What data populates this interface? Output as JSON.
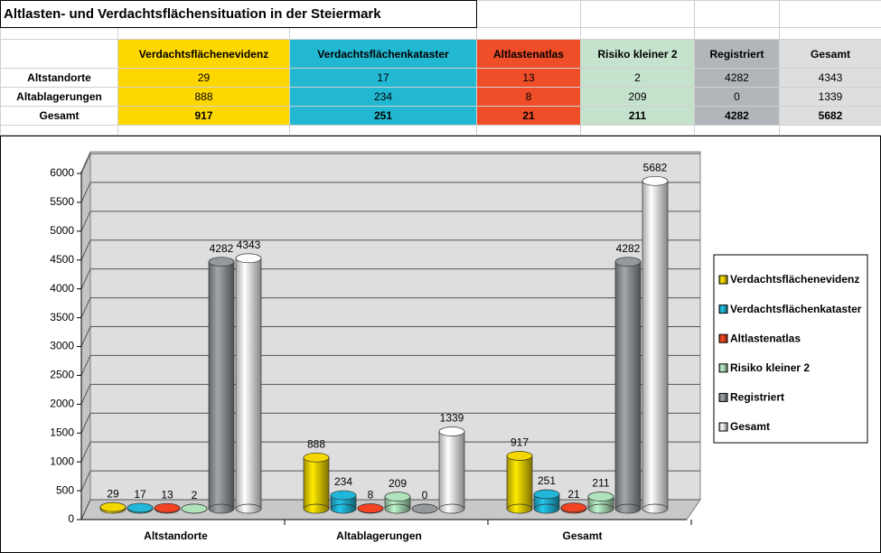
{
  "table": {
    "title": "Altlasten- und Verdachtsflächensituation in der Steiermark",
    "columns": [
      "Verdachtsflächenevidenz",
      "Verdachtsflächenkataster",
      "Altlastenatlas",
      "Risiko kleiner 2",
      "Registriert",
      "Gesamt"
    ],
    "colors": [
      "#ffd700",
      "#22b8d2",
      "#f04e28",
      "#c4e2cc",
      "#b2b6ba",
      "#dcdee0"
    ],
    "rows": [
      {
        "label": "Altstandorte",
        "cells": [
          29,
          17,
          13,
          2,
          4282,
          4343
        ]
      },
      {
        "label": "Altablagerungen",
        "cells": [
          888,
          234,
          8,
          209,
          0,
          1339
        ]
      },
      {
        "label": "Gesamt",
        "cells": [
          917,
          251,
          21,
          211,
          4282,
          5682
        ]
      }
    ]
  },
  "chart_data": {
    "type": "bar",
    "categories": [
      "Altstandorte",
      "Altablagerungen",
      "Gesamt"
    ],
    "series": [
      {
        "name": "Verdachtsflächenevidenz",
        "color": "#e8cc00",
        "values": [
          29,
          888,
          917
        ]
      },
      {
        "name": "Verdachtsflächenkataster",
        "color": "#1eaed0",
        "values": [
          17,
          234,
          251
        ]
      },
      {
        "name": "Altlastenatlas",
        "color": "#e84020",
        "values": [
          13,
          8,
          21
        ]
      },
      {
        "name": "Risiko kleiner 2",
        "color": "#a6d8b2",
        "values": [
          2,
          209,
          211
        ]
      },
      {
        "name": "Registriert",
        "color": "#8e9296",
        "values": [
          4282,
          0,
          4282
        ]
      },
      {
        "name": "Gesamt",
        "color": "#f2f2f2",
        "values": [
          4343,
          1339,
          5682
        ]
      }
    ],
    "ylim": [
      0,
      6000
    ],
    "yticks": [
      0,
      500,
      1000,
      1500,
      2000,
      2500,
      3000,
      3500,
      4000,
      4500,
      5000,
      5500,
      6000
    ],
    "grid": true,
    "legend": "right"
  }
}
